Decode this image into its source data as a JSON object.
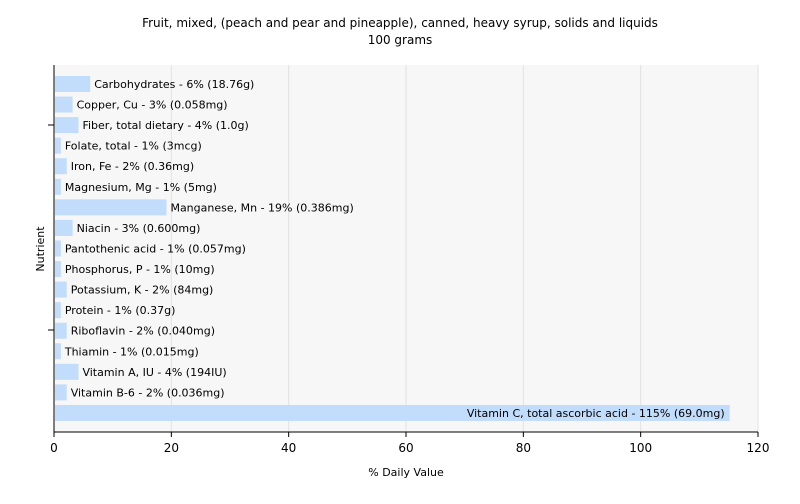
{
  "chart_data": {
    "type": "bar",
    "orientation": "horizontal",
    "title": "Fruit, mixed, (peach and pear and pineapple), canned, heavy syrup, solids and liquids",
    "subtitle": "100 grams",
    "xlabel": "% Daily Value",
    "ylabel": "Nutrient",
    "xlim": [
      0,
      120
    ],
    "xticks": [
      0,
      20,
      40,
      60,
      80,
      100,
      120
    ],
    "grid": true,
    "bar_color": "#c2dcfb",
    "categories": [
      "Carbohydrates",
      "Copper, Cu",
      "Fiber, total dietary",
      "Folate, total",
      "Iron, Fe",
      "Magnesium, Mg",
      "Manganese, Mn",
      "Niacin",
      "Pantothenic acid",
      "Phosphorus, P",
      "Potassium, K",
      "Protein",
      "Riboflavin",
      "Thiamin",
      "Vitamin A, IU",
      "Vitamin B-6",
      "Vitamin C, total ascorbic acid"
    ],
    "values": [
      6,
      3,
      4,
      1,
      2,
      1,
      19,
      3,
      1,
      1,
      2,
      1,
      2,
      1,
      4,
      2,
      115
    ],
    "labels": [
      "Carbohydrates - 6% (18.76g)",
      "Copper, Cu - 3% (0.058mg)",
      "Fiber, total dietary - 4% (1.0g)",
      "Folate, total - 1% (3mcg)",
      "Iron, Fe - 2% (0.36mg)",
      "Magnesium, Mg - 1% (5mg)",
      "Manganese, Mn - 19% (0.386mg)",
      "Niacin - 3% (0.600mg)",
      "Pantothenic acid - 1% (0.057mg)",
      "Phosphorus, P - 1% (10mg)",
      "Potassium, K - 2% (84mg)",
      "Protein - 1% (0.37g)",
      "Riboflavin - 2% (0.040mg)",
      "Thiamin - 1% (0.015mg)",
      "Vitamin A, IU - 4% (194IU)",
      "Vitamin B-6 - 2% (0.036mg)",
      "Vitamin C, total ascorbic acid - 115% (69.0mg)"
    ]
  }
}
